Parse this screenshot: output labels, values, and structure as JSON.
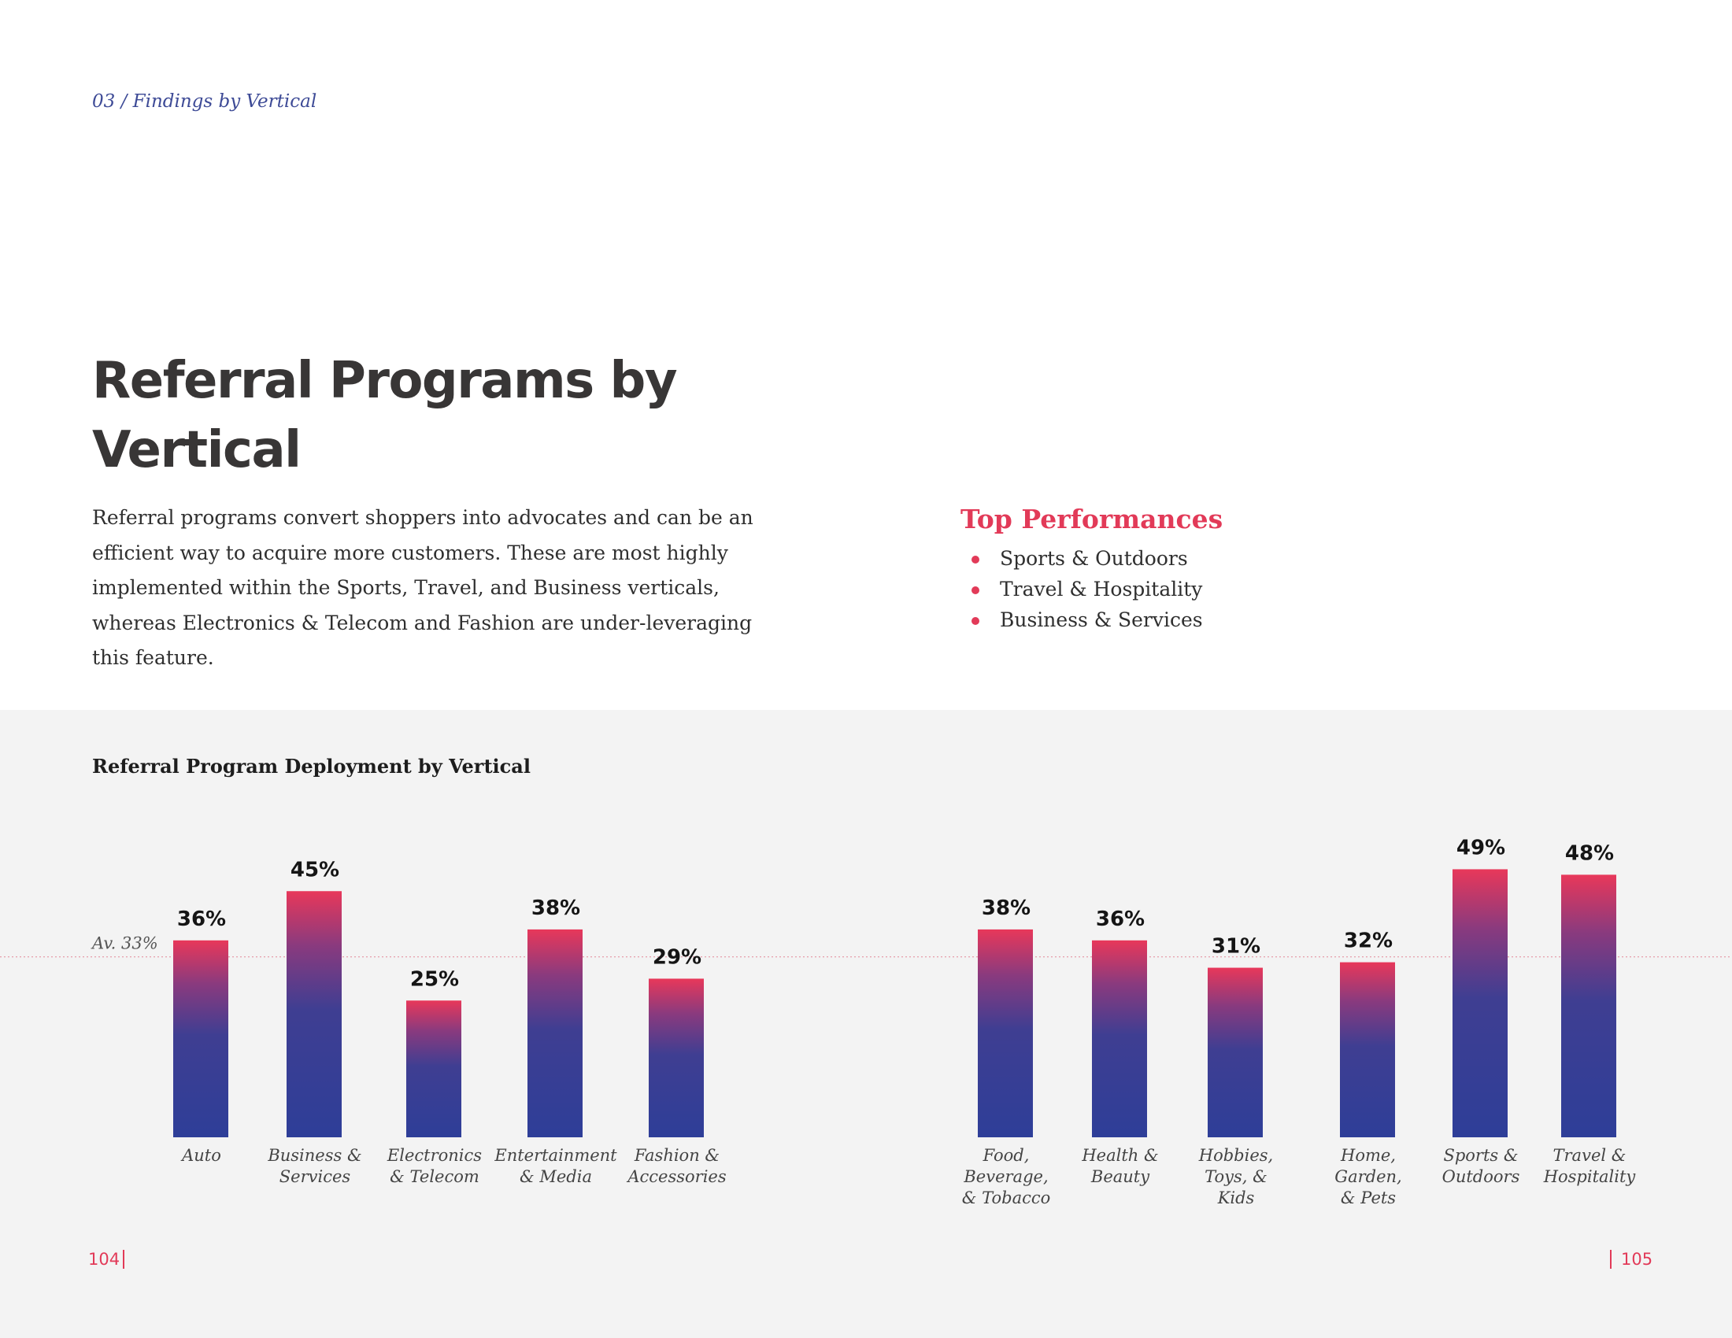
{
  "header": {
    "breadcrumb": "03 / Findings by Vertical"
  },
  "title": {
    "line1": "Referral Programs by",
    "line2": "Vertical"
  },
  "intro": "Referral programs convert shoppers into advocates and can be an efficient way to acquire more customers. These are most highly implemented within the Sports, Travel, and Business verticals, whereas Electronics & Telecom and Fashion are under-leveraging this feature.",
  "top_performances": {
    "heading": "Top Performances",
    "items": [
      "Sports & Outdoors",
      "Travel & Hospitality",
      "Business & Services"
    ]
  },
  "footer": {
    "left_page": "104",
    "right_page": "105"
  },
  "colors": {
    "accent": "#e23a58",
    "bar_top": "#e8385a",
    "bar_bottom": "#2e3e98",
    "panel_bg": "#f3f3f3"
  },
  "chart_data": {
    "type": "bar",
    "title": "Referral Program Deployment by Vertical",
    "xlabel": "",
    "ylabel": "",
    "ylim": [
      0,
      100
    ],
    "average": {
      "value": 33,
      "label": "Av. 33%"
    },
    "groups": [
      {
        "categories": [
          [
            "Auto"
          ],
          [
            "Business &",
            "Services"
          ],
          [
            "Electronics",
            "& Telecom"
          ],
          [
            "Entertainment",
            "& Media"
          ],
          [
            "Fashion &",
            "Accessories"
          ]
        ],
        "values": [
          36,
          45,
          25,
          38,
          29
        ],
        "value_labels": [
          "36%",
          "45%",
          "25%",
          "38%",
          "29%"
        ]
      },
      {
        "categories": [
          [
            "Food,",
            "Beverage,",
            "& Tobacco"
          ],
          [
            "Health &",
            "Beauty"
          ],
          [
            "Hobbies,",
            "Toys, &",
            "Kids"
          ],
          [
            "Home,",
            "Garden,",
            "& Pets"
          ],
          [
            "Sports &",
            "Outdoors"
          ],
          [
            "Travel &",
            "Hospitality"
          ]
        ],
        "values": [
          38,
          36,
          31,
          32,
          49,
          48
        ],
        "value_labels": [
          "38%",
          "36%",
          "31%",
          "32%",
          "49%",
          "48%"
        ]
      }
    ]
  }
}
